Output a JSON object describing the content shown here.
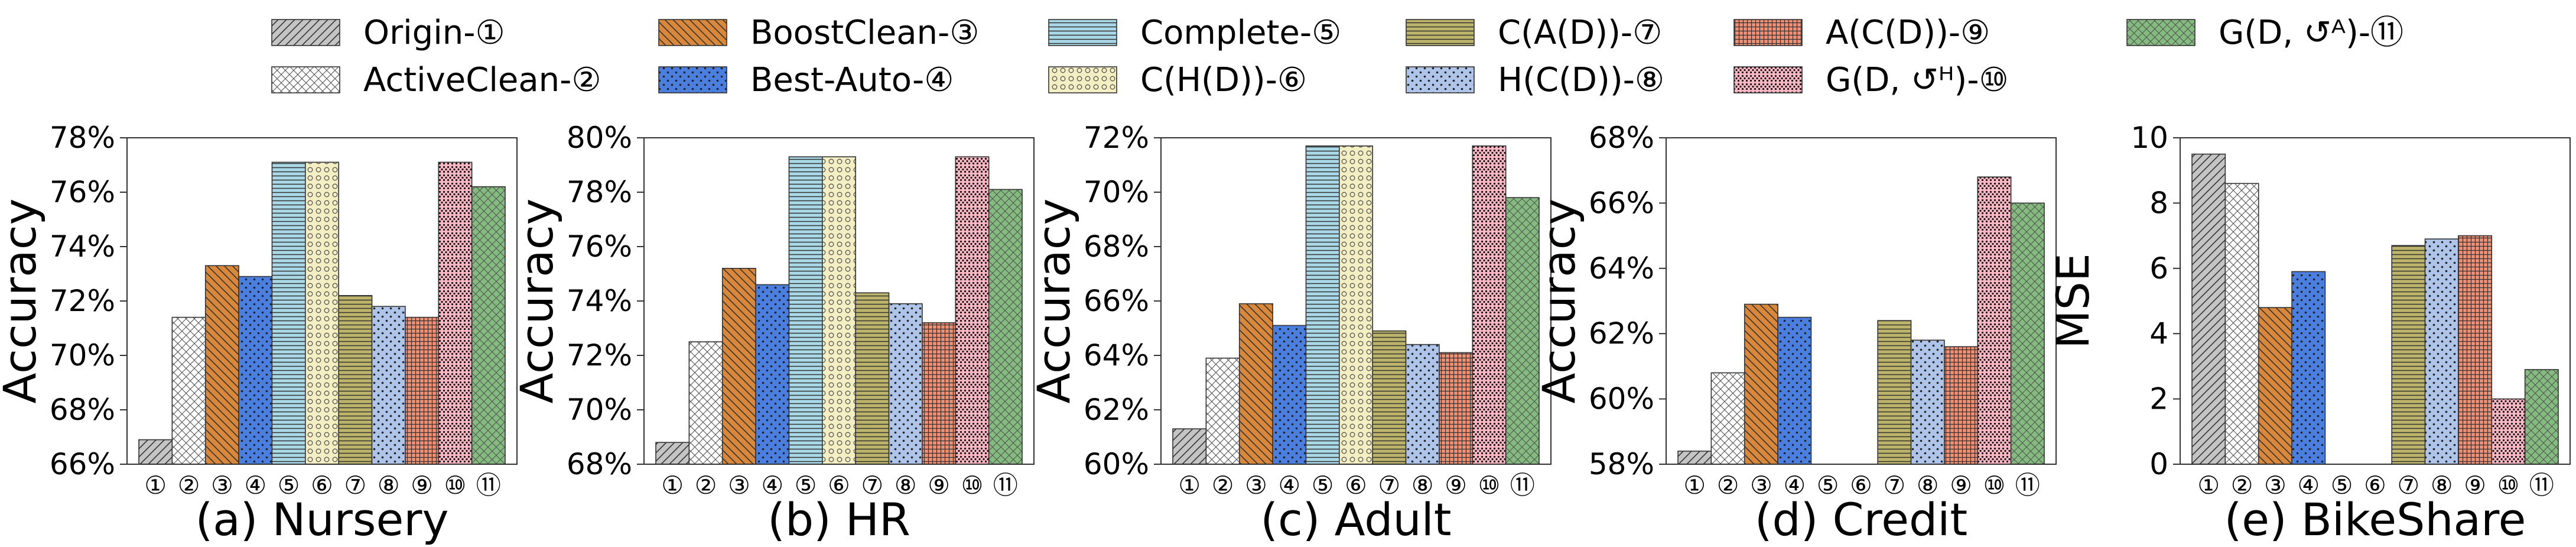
{
  "chart_data": [
    {
      "type": "bar",
      "title": "(a) Nursery",
      "ylabel": "Accuracy",
      "ylim": [
        66,
        78
      ],
      "yticks": [
        66,
        68,
        70,
        72,
        74,
        76,
        78
      ],
      "ytick_labels": [
        "66%",
        "68%",
        "70%",
        "72%",
        "74%",
        "76%",
        "78%"
      ],
      "categories": [
        "①",
        "②",
        "③",
        "④",
        "⑤",
        "⑥",
        "⑦",
        "⑧",
        "⑨",
        "⑩",
        "⑪"
      ],
      "values": [
        66.9,
        71.4,
        73.3,
        72.9,
        77.1,
        77.1,
        72.2,
        71.8,
        71.4,
        77.1,
        76.2
      ]
    },
    {
      "type": "bar",
      "title": "(b) HR",
      "ylabel": "Accuracy",
      "ylim": [
        68,
        80
      ],
      "yticks": [
        68,
        70,
        72,
        74,
        76,
        78,
        80
      ],
      "ytick_labels": [
        "68%",
        "70%",
        "72%",
        "74%",
        "76%",
        "78%",
        "80%"
      ],
      "categories": [
        "①",
        "②",
        "③",
        "④",
        "⑤",
        "⑥",
        "⑦",
        "⑧",
        "⑨",
        "⑩",
        "⑪"
      ],
      "values": [
        68.8,
        72.5,
        75.2,
        74.6,
        79.3,
        79.3,
        74.3,
        73.9,
        73.2,
        79.3,
        78.1
      ]
    },
    {
      "type": "bar",
      "title": "(c) Adult",
      "ylabel": "Accuracy",
      "ylim": [
        60,
        72
      ],
      "yticks": [
        60,
        62,
        64,
        66,
        68,
        70,
        72
      ],
      "ytick_labels": [
        "60%",
        "62%",
        "64%",
        "66%",
        "68%",
        "70%",
        "72%"
      ],
      "categories": [
        "①",
        "②",
        "③",
        "④",
        "⑤",
        "⑥",
        "⑦",
        "⑧",
        "⑨",
        "⑩",
        "⑪"
      ],
      "values": [
        61.3,
        63.9,
        65.9,
        65.1,
        71.7,
        71.7,
        64.9,
        64.4,
        64.1,
        71.7,
        69.8
      ]
    },
    {
      "type": "bar",
      "title": "(d) Credit",
      "ylabel": "Accuracy",
      "ylim": [
        58,
        68
      ],
      "yticks": [
        58,
        60,
        62,
        64,
        66,
        68
      ],
      "ytick_labels": [
        "58%",
        "60%",
        "62%",
        "64%",
        "66%",
        "68%"
      ],
      "categories": [
        "①",
        "②",
        "③",
        "④",
        "⑤",
        "⑥",
        "⑦",
        "⑧",
        "⑨",
        "⑩",
        "⑪"
      ],
      "values": [
        58.4,
        60.8,
        62.9,
        62.5,
        null,
        null,
        62.4,
        61.8,
        61.6,
        66.8,
        66.0
      ]
    },
    {
      "type": "bar",
      "title": "(e) BikeShare",
      "ylabel": "MSE",
      "ylim": [
        0,
        10
      ],
      "yticks": [
        0,
        2,
        4,
        6,
        8,
        10
      ],
      "ytick_labels": [
        "0",
        "2",
        "4",
        "6",
        "8",
        "10"
      ],
      "categories": [
        "①",
        "②",
        "③",
        "④",
        "⑤",
        "⑥",
        "⑦",
        "⑧",
        "⑨",
        "⑩",
        "⑪"
      ],
      "values": [
        9.5,
        8.6,
        4.8,
        5.9,
        null,
        null,
        6.7,
        6.9,
        7.0,
        2.0,
        2.9
      ]
    }
  ],
  "legend": [
    {
      "label": "Origin-①",
      "color": "#c4c4c4",
      "pattern": "diag-right"
    },
    {
      "label": "ActiveClean-②",
      "color": "#ffffff",
      "pattern": "cross-hatch"
    },
    {
      "label": "BoostClean-③",
      "color": "#d9883b",
      "pattern": "diag-left"
    },
    {
      "label": "Best-Auto-④",
      "color": "#4a7fe0",
      "pattern": "dots"
    },
    {
      "label": "Complete-⑤",
      "color": "#a9d8e6",
      "pattern": "horizontal-lines"
    },
    {
      "label": "C(H(D))-⑥",
      "color": "#f4efc2",
      "pattern": "circles"
    },
    {
      "label": "C(A(D))-⑦",
      "color": "#bcb46a",
      "pattern": "horizontal-lines"
    },
    {
      "label": "H(C(D))-⑧",
      "color": "#aec4e8",
      "pattern": "dots"
    },
    {
      "label": "A(C(D))-⑨",
      "color": "#ef8f74",
      "pattern": "grid"
    },
    {
      "label": "G(D, ↺ᴴ)-⑩",
      "color": "#f7b6c2",
      "pattern": "dense-dots"
    },
    {
      "label": "G(D, ↺ᴬ)-⑪",
      "color": "#84bb7f",
      "pattern": "cross-hatch"
    }
  ]
}
